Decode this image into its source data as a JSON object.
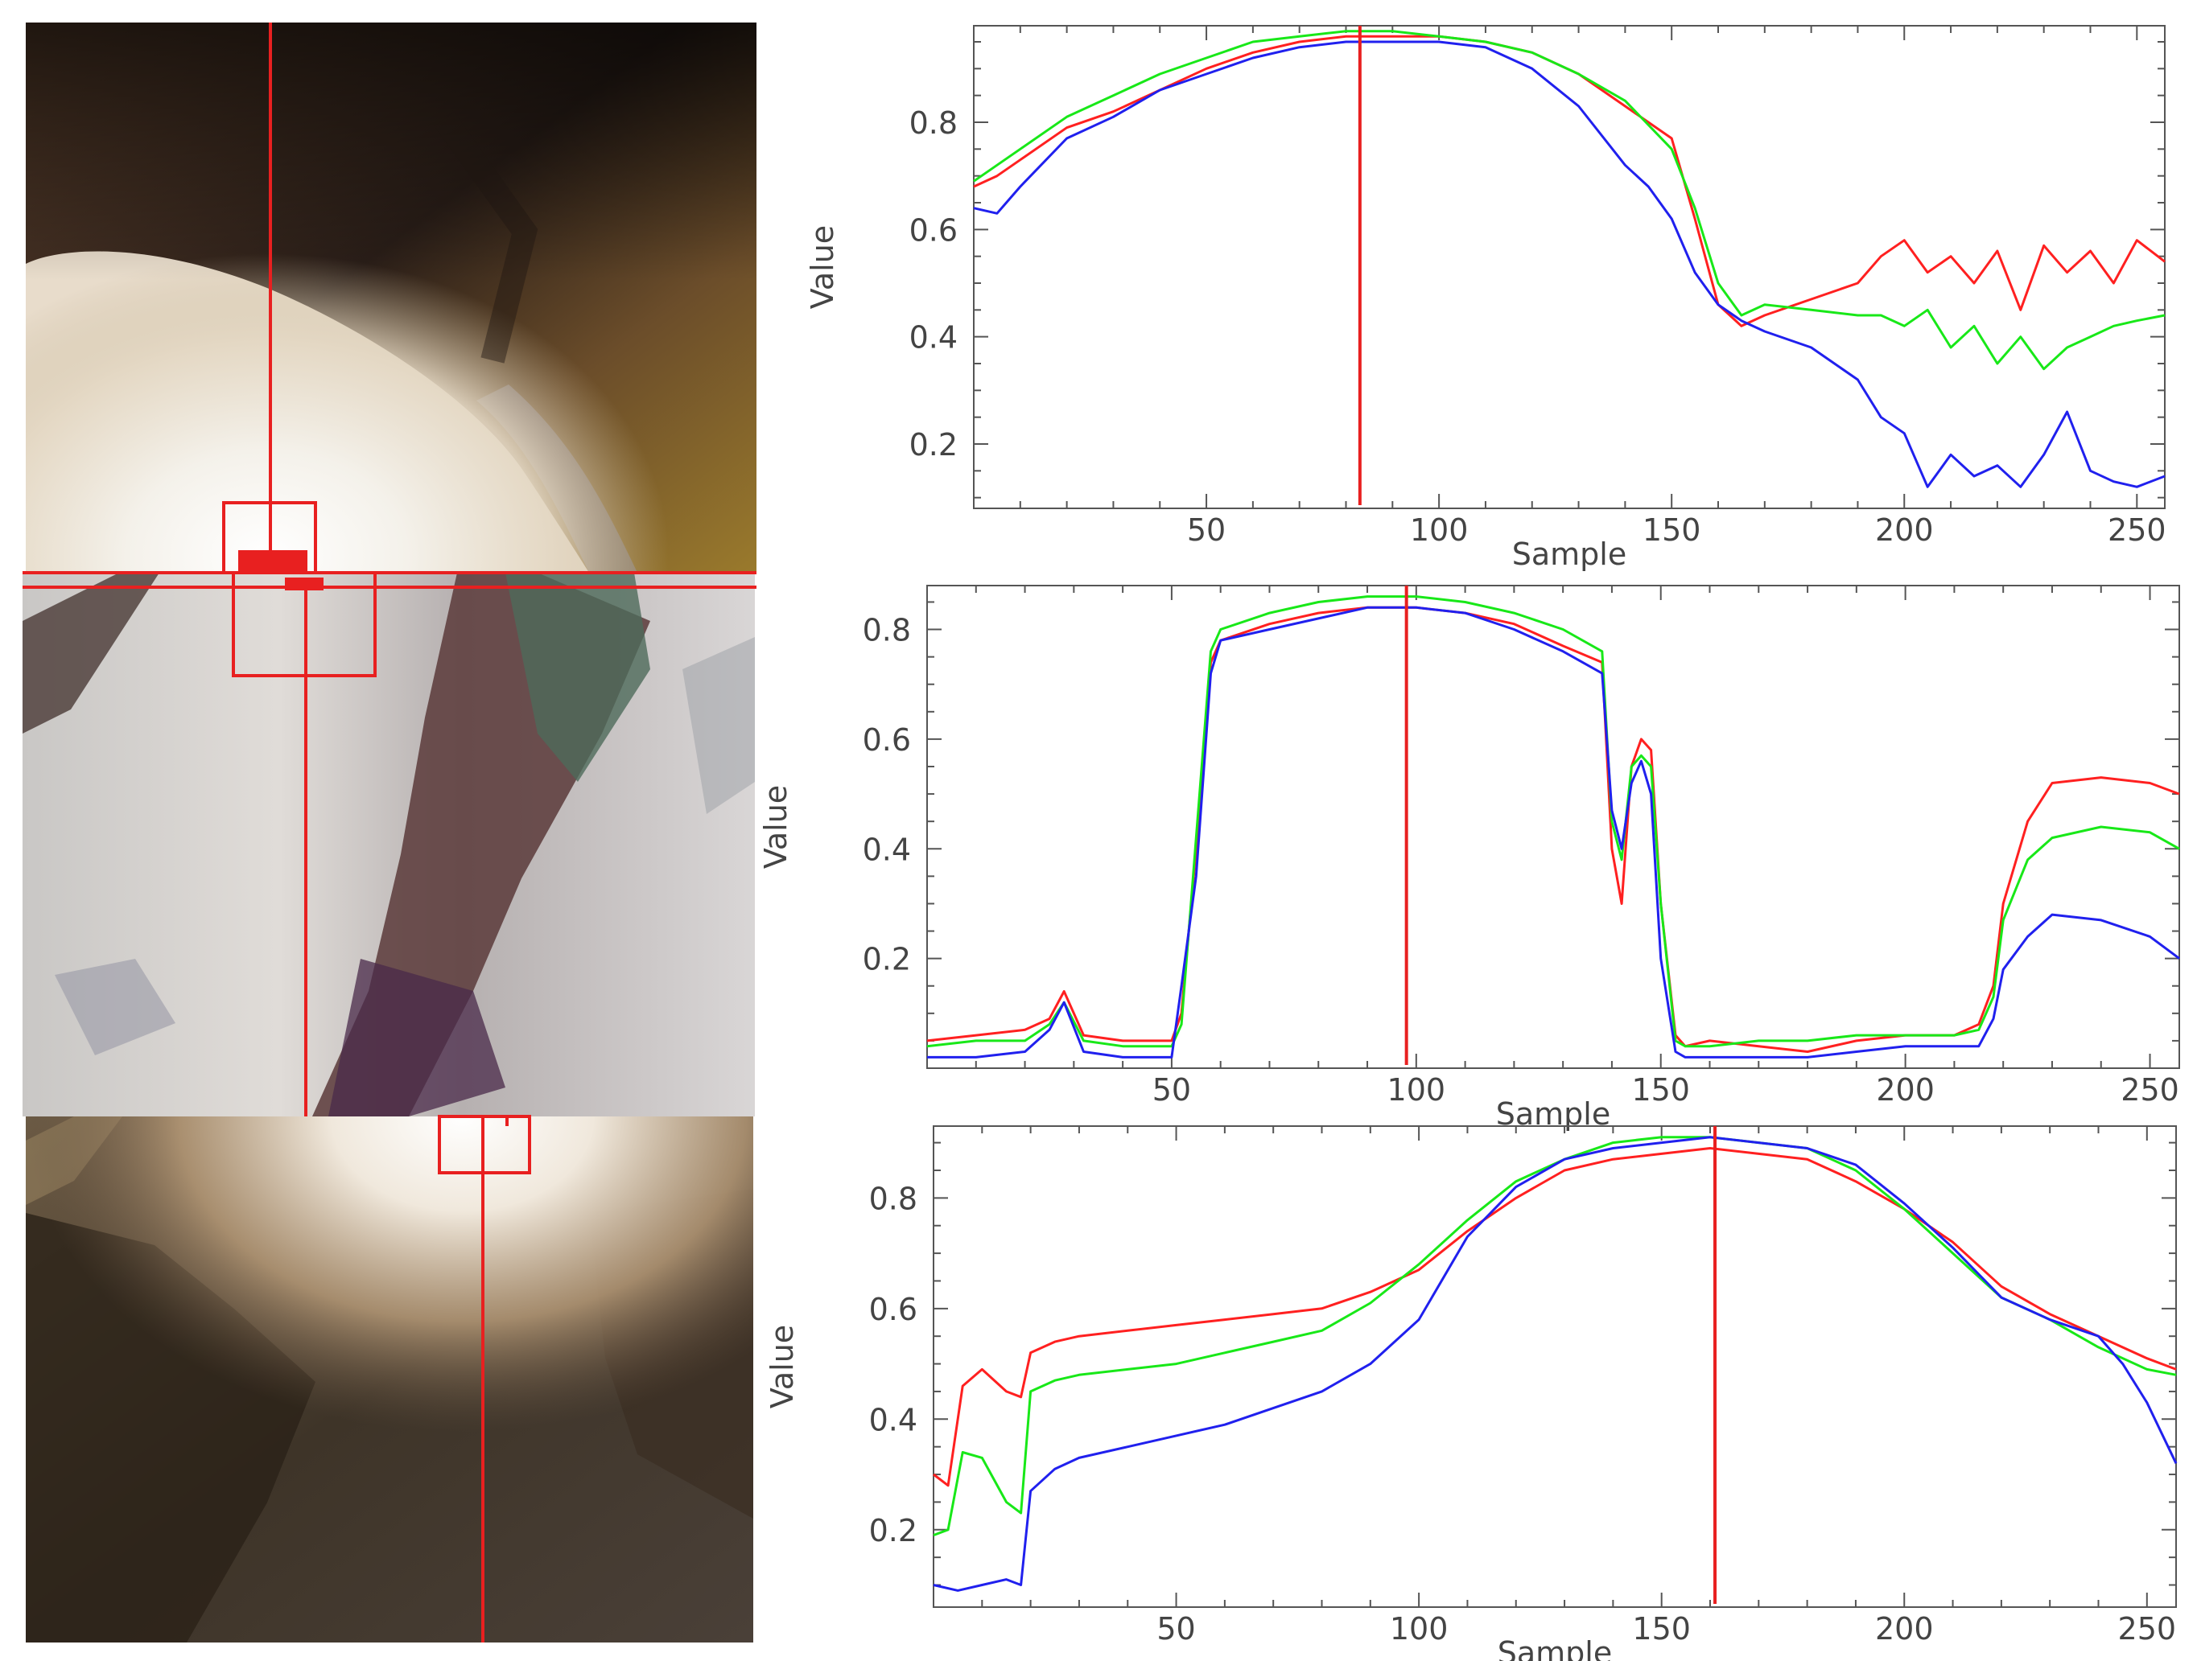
{
  "colors": {
    "red": "#ff2020",
    "green": "#18e818",
    "blue": "#2020ee",
    "marker": "#e82020",
    "axis": "#555555"
  },
  "chart_data": [
    {
      "type": "line",
      "xlabel": "Sample",
      "ylabel": "Value",
      "xlim": [
        0,
        256
      ],
      "ylim": [
        0.08,
        0.98
      ],
      "xticks": [
        50,
        100,
        150,
        200,
        250
      ],
      "yticks": [
        0.2,
        0.4,
        0.6,
        0.8
      ],
      "marker_x": 83,
      "series": [
        {
          "color": "red",
          "x": [
            0,
            5,
            10,
            20,
            30,
            40,
            50,
            60,
            70,
            80,
            90,
            100,
            110,
            120,
            130,
            140,
            150,
            155,
            160,
            165,
            170,
            180,
            190,
            195,
            200,
            205,
            210,
            215,
            220,
            225,
            230,
            235,
            240,
            245,
            250,
            256
          ],
          "y": [
            0.68,
            0.7,
            0.73,
            0.79,
            0.82,
            0.86,
            0.9,
            0.93,
            0.95,
            0.96,
            0.96,
            0.96,
            0.95,
            0.93,
            0.89,
            0.83,
            0.77,
            0.62,
            0.46,
            0.42,
            0.44,
            0.47,
            0.5,
            0.55,
            0.58,
            0.52,
            0.55,
            0.5,
            0.56,
            0.45,
            0.57,
            0.52,
            0.56,
            0.5,
            0.58,
            0.54
          ]
        },
        {
          "color": "green",
          "x": [
            0,
            5,
            10,
            20,
            30,
            40,
            50,
            60,
            70,
            80,
            90,
            100,
            110,
            120,
            130,
            140,
            150,
            155,
            160,
            165,
            170,
            180,
            190,
            195,
            200,
            205,
            210,
            215,
            220,
            225,
            230,
            235,
            240,
            245,
            250,
            256
          ],
          "y": [
            0.69,
            0.72,
            0.75,
            0.81,
            0.85,
            0.89,
            0.92,
            0.95,
            0.96,
            0.97,
            0.97,
            0.96,
            0.95,
            0.93,
            0.89,
            0.84,
            0.75,
            0.64,
            0.5,
            0.44,
            0.46,
            0.45,
            0.44,
            0.44,
            0.42,
            0.45,
            0.38,
            0.42,
            0.35,
            0.4,
            0.34,
            0.38,
            0.4,
            0.42,
            0.43,
            0.44
          ]
        },
        {
          "color": "blue",
          "x": [
            0,
            5,
            10,
            20,
            30,
            40,
            50,
            60,
            70,
            80,
            90,
            100,
            110,
            120,
            130,
            140,
            145,
            150,
            155,
            160,
            165,
            170,
            180,
            185,
            190,
            195,
            200,
            205,
            210,
            215,
            220,
            225,
            230,
            235,
            240,
            245,
            250,
            256
          ],
          "y": [
            0.64,
            0.63,
            0.68,
            0.77,
            0.81,
            0.86,
            0.89,
            0.92,
            0.94,
            0.95,
            0.95,
            0.95,
            0.94,
            0.9,
            0.83,
            0.72,
            0.68,
            0.62,
            0.52,
            0.46,
            0.43,
            0.41,
            0.38,
            0.35,
            0.32,
            0.25,
            0.22,
            0.12,
            0.18,
            0.14,
            0.16,
            0.12,
            0.18,
            0.26,
            0.15,
            0.13,
            0.12,
            0.14
          ]
        }
      ]
    },
    {
      "type": "line",
      "xlabel": "Sample",
      "ylabel": "Value",
      "xlim": [
        0,
        256
      ],
      "ylim": [
        0.0,
        0.88
      ],
      "xticks": [
        50,
        100,
        150,
        200,
        250
      ],
      "yticks": [
        0.2,
        0.4,
        0.6,
        0.8
      ],
      "marker_x": 98,
      "series": [
        {
          "color": "red",
          "x": [
            0,
            10,
            20,
            25,
            28,
            32,
            40,
            50,
            52,
            55,
            58,
            60,
            70,
            80,
            90,
            100,
            110,
            120,
            130,
            138,
            140,
            142,
            144,
            146,
            148,
            150,
            153,
            155,
            160,
            170,
            180,
            190,
            200,
            210,
            215,
            218,
            220,
            225,
            230,
            240,
            250,
            256
          ],
          "y": [
            0.05,
            0.06,
            0.07,
            0.09,
            0.14,
            0.06,
            0.05,
            0.05,
            0.1,
            0.4,
            0.74,
            0.78,
            0.81,
            0.83,
            0.84,
            0.84,
            0.83,
            0.81,
            0.77,
            0.74,
            0.4,
            0.3,
            0.55,
            0.6,
            0.58,
            0.3,
            0.06,
            0.04,
            0.05,
            0.04,
            0.03,
            0.05,
            0.06,
            0.06,
            0.08,
            0.15,
            0.3,
            0.45,
            0.52,
            0.53,
            0.52,
            0.5
          ]
        },
        {
          "color": "green",
          "x": [
            0,
            10,
            20,
            25,
            28,
            32,
            40,
            50,
            52,
            55,
            58,
            60,
            70,
            80,
            90,
            100,
            110,
            120,
            130,
            138,
            140,
            142,
            144,
            146,
            148,
            150,
            153,
            155,
            160,
            170,
            180,
            190,
            200,
            210,
            215,
            218,
            220,
            225,
            230,
            240,
            250,
            256
          ],
          "y": [
            0.04,
            0.05,
            0.05,
            0.08,
            0.12,
            0.05,
            0.04,
            0.04,
            0.08,
            0.42,
            0.76,
            0.8,
            0.83,
            0.85,
            0.86,
            0.86,
            0.85,
            0.83,
            0.8,
            0.76,
            0.45,
            0.38,
            0.55,
            0.57,
            0.55,
            0.3,
            0.05,
            0.04,
            0.04,
            0.05,
            0.05,
            0.06,
            0.06,
            0.06,
            0.07,
            0.13,
            0.27,
            0.38,
            0.42,
            0.44,
            0.43,
            0.4
          ]
        },
        {
          "color": "blue",
          "x": [
            0,
            10,
            20,
            25,
            28,
            32,
            40,
            50,
            52,
            55,
            58,
            60,
            70,
            80,
            90,
            100,
            110,
            120,
            130,
            138,
            140,
            142,
            144,
            146,
            148,
            150,
            153,
            155,
            160,
            170,
            180,
            190,
            200,
            210,
            215,
            218,
            220,
            225,
            230,
            240,
            250,
            256
          ],
          "y": [
            0.02,
            0.02,
            0.03,
            0.07,
            0.12,
            0.03,
            0.02,
            0.02,
            0.15,
            0.35,
            0.72,
            0.78,
            0.8,
            0.82,
            0.84,
            0.84,
            0.83,
            0.8,
            0.76,
            0.72,
            0.47,
            0.4,
            0.52,
            0.56,
            0.5,
            0.2,
            0.03,
            0.02,
            0.02,
            0.02,
            0.02,
            0.03,
            0.04,
            0.04,
            0.04,
            0.09,
            0.18,
            0.24,
            0.28,
            0.27,
            0.24,
            0.2
          ]
        }
      ]
    },
    {
      "type": "line",
      "xlabel": "Sample",
      "ylabel": "Value",
      "xlim": [
        0,
        256
      ],
      "ylim": [
        0.06,
        0.93
      ],
      "xticks": [
        50,
        100,
        150,
        200,
        250
      ],
      "yticks": [
        0.2,
        0.4,
        0.6,
        0.8
      ],
      "marker_x": 161,
      "series": [
        {
          "color": "red",
          "x": [
            0,
            3,
            6,
            10,
            15,
            18,
            20,
            25,
            30,
            40,
            50,
            60,
            70,
            80,
            90,
            100,
            110,
            120,
            130,
            140,
            150,
            160,
            170,
            180,
            190,
            200,
            210,
            220,
            230,
            240,
            250,
            256
          ],
          "y": [
            0.3,
            0.28,
            0.46,
            0.49,
            0.45,
            0.44,
            0.52,
            0.54,
            0.55,
            0.56,
            0.57,
            0.58,
            0.59,
            0.6,
            0.63,
            0.67,
            0.74,
            0.8,
            0.85,
            0.87,
            0.88,
            0.89,
            0.88,
            0.87,
            0.83,
            0.78,
            0.72,
            0.64,
            0.59,
            0.55,
            0.51,
            0.49
          ]
        },
        {
          "color": "green",
          "x": [
            0,
            3,
            6,
            10,
            15,
            18,
            20,
            25,
            30,
            40,
            50,
            60,
            70,
            80,
            90,
            100,
            110,
            120,
            130,
            140,
            150,
            160,
            170,
            180,
            190,
            200,
            210,
            220,
            230,
            240,
            250,
            256
          ],
          "y": [
            0.19,
            0.2,
            0.34,
            0.33,
            0.25,
            0.23,
            0.45,
            0.47,
            0.48,
            0.49,
            0.5,
            0.52,
            0.54,
            0.56,
            0.61,
            0.68,
            0.76,
            0.83,
            0.87,
            0.9,
            0.91,
            0.91,
            0.9,
            0.89,
            0.85,
            0.78,
            0.7,
            0.62,
            0.58,
            0.53,
            0.49,
            0.48
          ]
        },
        {
          "color": "blue",
          "x": [
            0,
            5,
            10,
            15,
            18,
            20,
            25,
            30,
            40,
            50,
            60,
            70,
            80,
            90,
            100,
            110,
            120,
            130,
            140,
            150,
            160,
            170,
            180,
            190,
            200,
            210,
            220,
            230,
            240,
            245,
            250,
            256
          ],
          "y": [
            0.1,
            0.09,
            0.1,
            0.11,
            0.1,
            0.27,
            0.31,
            0.33,
            0.35,
            0.37,
            0.39,
            0.42,
            0.45,
            0.5,
            0.58,
            0.73,
            0.82,
            0.87,
            0.89,
            0.9,
            0.91,
            0.9,
            0.89,
            0.86,
            0.79,
            0.71,
            0.62,
            0.58,
            0.55,
            0.5,
            0.43,
            0.32
          ]
        }
      ]
    }
  ]
}
